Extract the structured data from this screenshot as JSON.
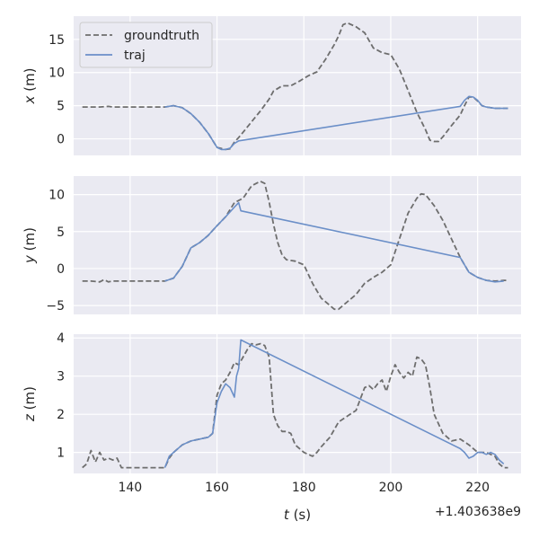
{
  "chart_data": [
    {
      "type": "line",
      "ylabel": "x (m)",
      "xlim": [
        127,
        230
      ],
      "ylim": [
        -2.5,
        18.5
      ],
      "yticks": [
        0,
        5,
        10,
        15
      ],
      "ytick_labels": [
        "0",
        "5",
        "10",
        "15"
      ],
      "grid": true,
      "legend": "top-left",
      "series": [
        {
          "name": "groundtruth",
          "color": "#6e6e6e",
          "style": "dashed",
          "x": [
            129,
            131,
            133,
            135,
            136,
            138,
            140,
            142,
            144,
            146,
            148,
            150,
            152,
            154,
            156,
            158,
            160,
            162,
            163,
            164,
            165,
            166,
            168,
            170,
            172,
            173,
            175,
            177,
            179,
            181,
            183,
            185,
            187,
            188,
            189,
            190,
            192,
            194,
            196,
            198,
            200,
            202,
            204,
            206,
            208,
            209,
            210,
            211,
            212,
            214,
            216,
            217,
            218,
            219,
            220,
            221,
            222,
            224,
            226,
            227
          ],
          "y": [
            4.8,
            4.8,
            4.8,
            4.9,
            4.8,
            4.8,
            4.8,
            4.8,
            4.8,
            4.8,
            4.8,
            5.0,
            4.7,
            3.8,
            2.5,
            0.8,
            -1.3,
            -1.6,
            -1.5,
            -0.5,
            0.2,
            1.0,
            2.6,
            4.2,
            6.0,
            7.2,
            8.0,
            8.0,
            8.7,
            9.5,
            10.1,
            12.0,
            14.2,
            15.5,
            17.2,
            17.5,
            16.9,
            16.0,
            13.7,
            13.0,
            12.7,
            10.5,
            7.3,
            4.0,
            1.4,
            -0.2,
            -0.4,
            -0.4,
            0.3,
            2.0,
            3.6,
            5.0,
            6.3,
            6.3,
            5.7,
            5.0,
            4.8,
            4.6,
            4.6,
            4.6
          ]
        },
        {
          "name": "traj",
          "color": "#6b8fc8",
          "style": "solid",
          "x": [
            148,
            150,
            152,
            154,
            156,
            158,
            160,
            161,
            162,
            163,
            164,
            165,
            216,
            217,
            218,
            219,
            220,
            221,
            222,
            224,
            226,
            227
          ],
          "y": [
            4.8,
            5.0,
            4.7,
            3.8,
            2.5,
            0.8,
            -1.3,
            -1.6,
            -1.6,
            -1.4,
            -0.7,
            -0.3,
            4.9,
            5.8,
            6.4,
            6.3,
            5.8,
            5.0,
            4.8,
            4.6,
            4.6,
            4.6
          ]
        }
      ]
    },
    {
      "type": "line",
      "ylabel": "y (m)",
      "xlim": [
        127,
        230
      ],
      "ylim": [
        -6.2,
        12.5
      ],
      "yticks": [
        -5,
        0,
        5,
        10
      ],
      "ytick_labels": [
        "−5",
        "0",
        "5",
        "10"
      ],
      "grid": true,
      "series": [
        {
          "name": "groundtruth",
          "color": "#6e6e6e",
          "style": "dashed",
          "x": [
            129,
            131,
            133,
            134,
            135,
            136,
            138,
            140,
            142,
            144,
            146,
            148,
            150,
            152,
            154,
            156,
            158,
            160,
            162,
            164,
            166,
            168,
            170,
            171,
            172,
            173,
            174,
            175,
            176,
            178,
            180,
            182,
            184,
            186,
            187,
            188,
            190,
            192,
            194,
            196,
            198,
            200,
            202,
            204,
            206,
            207,
            208,
            210,
            212,
            214,
            216,
            218,
            220,
            222,
            224,
            226,
            227
          ],
          "y": [
            -1.7,
            -1.7,
            -1.8,
            -1.5,
            -1.8,
            -1.7,
            -1.7,
            -1.7,
            -1.7,
            -1.7,
            -1.7,
            -1.7,
            -1.3,
            0.3,
            2.8,
            3.5,
            4.5,
            5.8,
            7.0,
            8.9,
            9.5,
            11.2,
            11.8,
            11.5,
            9.0,
            6.0,
            3.5,
            1.8,
            1.2,
            1.0,
            0.5,
            -2.0,
            -4.0,
            -5.0,
            -5.5,
            -5.5,
            -4.5,
            -3.5,
            -2.0,
            -1.2,
            -0.5,
            0.5,
            4.0,
            7.5,
            9.5,
            10.1,
            10.0,
            8.5,
            6.5,
            4.0,
            1.5,
            -0.5,
            -1.2,
            -1.6,
            -1.7,
            -1.6,
            -1.6
          ]
        },
        {
          "name": "traj",
          "color": "#6b8fc8",
          "style": "solid",
          "x": [
            148,
            150,
            152,
            154,
            156,
            158,
            160,
            162,
            164,
            165,
            165.5,
            216,
            218,
            220,
            222,
            224,
            226
          ],
          "y": [
            -1.7,
            -1.3,
            0.3,
            2.8,
            3.5,
            4.5,
            5.8,
            7.0,
            8.3,
            8.9,
            7.8,
            1.5,
            -0.5,
            -1.2,
            -1.6,
            -1.8,
            -1.7
          ]
        }
      ]
    },
    {
      "type": "line",
      "ylabel": "z (m)",
      "xlabel": "t (s)",
      "xlim": [
        127,
        230
      ],
      "ylim": [
        0.45,
        4.1
      ],
      "yticks": [
        1,
        2,
        3,
        4
      ],
      "ytick_labels": [
        "1",
        "2",
        "3",
        "4"
      ],
      "xticks": [
        140,
        160,
        180,
        200,
        220
      ],
      "xtick_labels": [
        "140",
        "160",
        "180",
        "200",
        "220"
      ],
      "x_offset_label": "+1.403638e9",
      "grid": true,
      "series": [
        {
          "name": "groundtruth",
          "color": "#6e6e6e",
          "style": "dashed",
          "x": [
            129,
            130,
            131,
            132,
            133,
            134,
            135,
            136,
            137,
            138,
            140,
            142,
            144,
            146,
            148,
            149,
            150,
            152,
            154,
            156,
            158,
            159,
            160,
            161,
            162,
            163,
            164,
            165,
            166,
            167,
            168,
            169,
            170,
            171,
            172,
            173,
            174,
            175,
            176,
            177,
            178,
            180,
            182,
            183,
            184,
            186,
            188,
            190,
            192,
            194,
            195,
            196,
            197,
            198,
            199,
            200,
            201,
            202,
            203,
            204,
            205,
            206,
            207,
            208,
            209,
            210,
            212,
            214,
            216,
            218,
            220,
            222,
            224,
            225,
            226,
            227
          ],
          "y": [
            0.6,
            0.7,
            1.05,
            0.75,
            1.0,
            0.8,
            0.85,
            0.8,
            0.85,
            0.6,
            0.6,
            0.6,
            0.6,
            0.6,
            0.6,
            0.85,
            1.0,
            1.2,
            1.3,
            1.35,
            1.4,
            1.5,
            2.5,
            2.8,
            2.9,
            3.1,
            3.35,
            3.3,
            3.5,
            3.7,
            3.85,
            3.82,
            3.85,
            3.8,
            3.5,
            2.0,
            1.7,
            1.55,
            1.55,
            1.5,
            1.2,
            1.0,
            0.9,
            1.0,
            1.15,
            1.4,
            1.8,
            1.95,
            2.1,
            2.7,
            2.75,
            2.65,
            2.8,
            2.9,
            2.6,
            3.0,
            3.3,
            3.1,
            2.95,
            3.1,
            3.0,
            3.5,
            3.45,
            3.3,
            2.7,
            2.0,
            1.5,
            1.3,
            1.35,
            1.2,
            1.0,
            1.0,
            0.9,
            0.7,
            0.6,
            0.6
          ]
        },
        {
          "name": "traj",
          "color": "#6b8fc8",
          "style": "solid",
          "x": [
            148,
            149,
            150,
            152,
            154,
            156,
            158,
            159,
            160,
            161,
            162,
            163,
            164,
            164.5,
            165,
            165.5,
            216,
            217,
            218,
            219,
            220,
            221,
            222,
            223,
            224,
            225,
            226
          ],
          "y": [
            0.6,
            0.9,
            1.0,
            1.2,
            1.3,
            1.35,
            1.4,
            1.5,
            2.3,
            2.6,
            2.8,
            2.7,
            2.45,
            3.0,
            3.2,
            3.95,
            1.1,
            1.0,
            0.85,
            0.9,
            1.0,
            1.0,
            0.95,
            1.0,
            0.95,
            0.8,
            0.7
          ]
        }
      ]
    }
  ]
}
